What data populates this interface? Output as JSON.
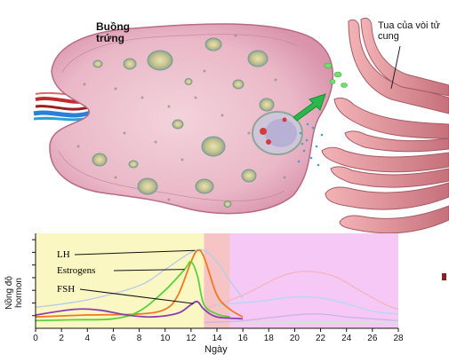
{
  "anatomy": {
    "ovary_label": "Buồng\ntrứng",
    "fimbriae_label": "Tua của vòi tử\ncung"
  },
  "chart_data": {
    "type": "line",
    "xlabel": "Ngày",
    "ylabel": "Nồng độ\nhormon",
    "xlim": [
      0,
      28
    ],
    "x_ticks": [
      "0",
      "2",
      "4",
      "6",
      "8",
      "10",
      "12",
      "14",
      "16",
      "18",
      "20",
      "22",
      "24",
      "26",
      "28"
    ],
    "phases": [
      {
        "start": 0,
        "end": 13,
        "color": "#fbf7c2"
      },
      {
        "start": 13,
        "end": 15,
        "color": "#f6c4c4"
      },
      {
        "start": 15,
        "end": 28,
        "color": "#f6c8f5"
      }
    ],
    "series": [
      {
        "name": "LH",
        "color": "#f07a1a",
        "points": [
          [
            0,
            0.12
          ],
          [
            4,
            0.14
          ],
          [
            8,
            0.15
          ],
          [
            10,
            0.2
          ],
          [
            11,
            0.35
          ],
          [
            12,
            0.7
          ],
          [
            12.5,
            0.82
          ],
          [
            13,
            0.75
          ],
          [
            14,
            0.35
          ],
          [
            15,
            0.2
          ],
          [
            16,
            0.12
          ]
        ]
      },
      {
        "name": "Estrogens",
        "color": "#5ad23c",
        "points": [
          [
            0,
            0.08
          ],
          [
            3,
            0.09
          ],
          [
            6,
            0.1
          ],
          [
            8,
            0.18
          ],
          [
            10,
            0.4
          ],
          [
            11.5,
            0.62
          ],
          [
            12,
            0.7
          ],
          [
            12.5,
            0.55
          ],
          [
            13,
            0.25
          ],
          [
            14,
            0.15
          ],
          [
            15,
            0.12
          ]
        ]
      },
      {
        "name": "FSH",
        "color": "#8e3db0",
        "points": [
          [
            0,
            0.14
          ],
          [
            3,
            0.2
          ],
          [
            5,
            0.19
          ],
          [
            7,
            0.14
          ],
          [
            9,
            0.12
          ],
          [
            11,
            0.16
          ],
          [
            12,
            0.25
          ],
          [
            12.5,
            0.28
          ],
          [
            13,
            0.2
          ],
          [
            14,
            0.12
          ],
          [
            16,
            0.1
          ]
        ]
      },
      {
        "name": "",
        "color": "#b8cde8",
        "points": [
          [
            0,
            0.22
          ],
          [
            4,
            0.3
          ],
          [
            8,
            0.45
          ],
          [
            10,
            0.62
          ],
          [
            12,
            0.8
          ],
          [
            13,
            0.82
          ],
          [
            14,
            0.7
          ],
          [
            15,
            0.5
          ],
          [
            16,
            0.32
          ]
        ]
      },
      {
        "name": "",
        "color": "#f2b6c2",
        "points": [
          [
            13,
            0.2
          ],
          [
            16,
            0.35
          ],
          [
            19,
            0.55
          ],
          [
            21,
            0.6
          ],
          [
            23,
            0.55
          ],
          [
            25,
            0.4
          ],
          [
            27,
            0.25
          ],
          [
            28,
            0.2
          ]
        ]
      },
      {
        "name": "",
        "color": "#b8d8f0",
        "points": [
          [
            14,
            0.25
          ],
          [
            17,
            0.28
          ],
          [
            20,
            0.33
          ],
          [
            22,
            0.32
          ],
          [
            24,
            0.26
          ],
          [
            26,
            0.18
          ],
          [
            28,
            0.15
          ]
        ]
      },
      {
        "name": "",
        "color": "#c9b6e6",
        "points": [
          [
            13,
            0.06
          ],
          [
            16,
            0.08
          ],
          [
            20,
            0.14
          ],
          [
            22,
            0.15
          ],
          [
            24,
            0.12
          ],
          [
            26,
            0.1
          ],
          [
            28,
            0.08
          ]
        ]
      },
      {
        "name": "",
        "color": "#c9ead0",
        "points": [
          [
            15,
            0.05
          ],
          [
            20,
            0.06
          ],
          [
            24,
            0.06
          ],
          [
            28,
            0.07
          ]
        ]
      }
    ]
  }
}
